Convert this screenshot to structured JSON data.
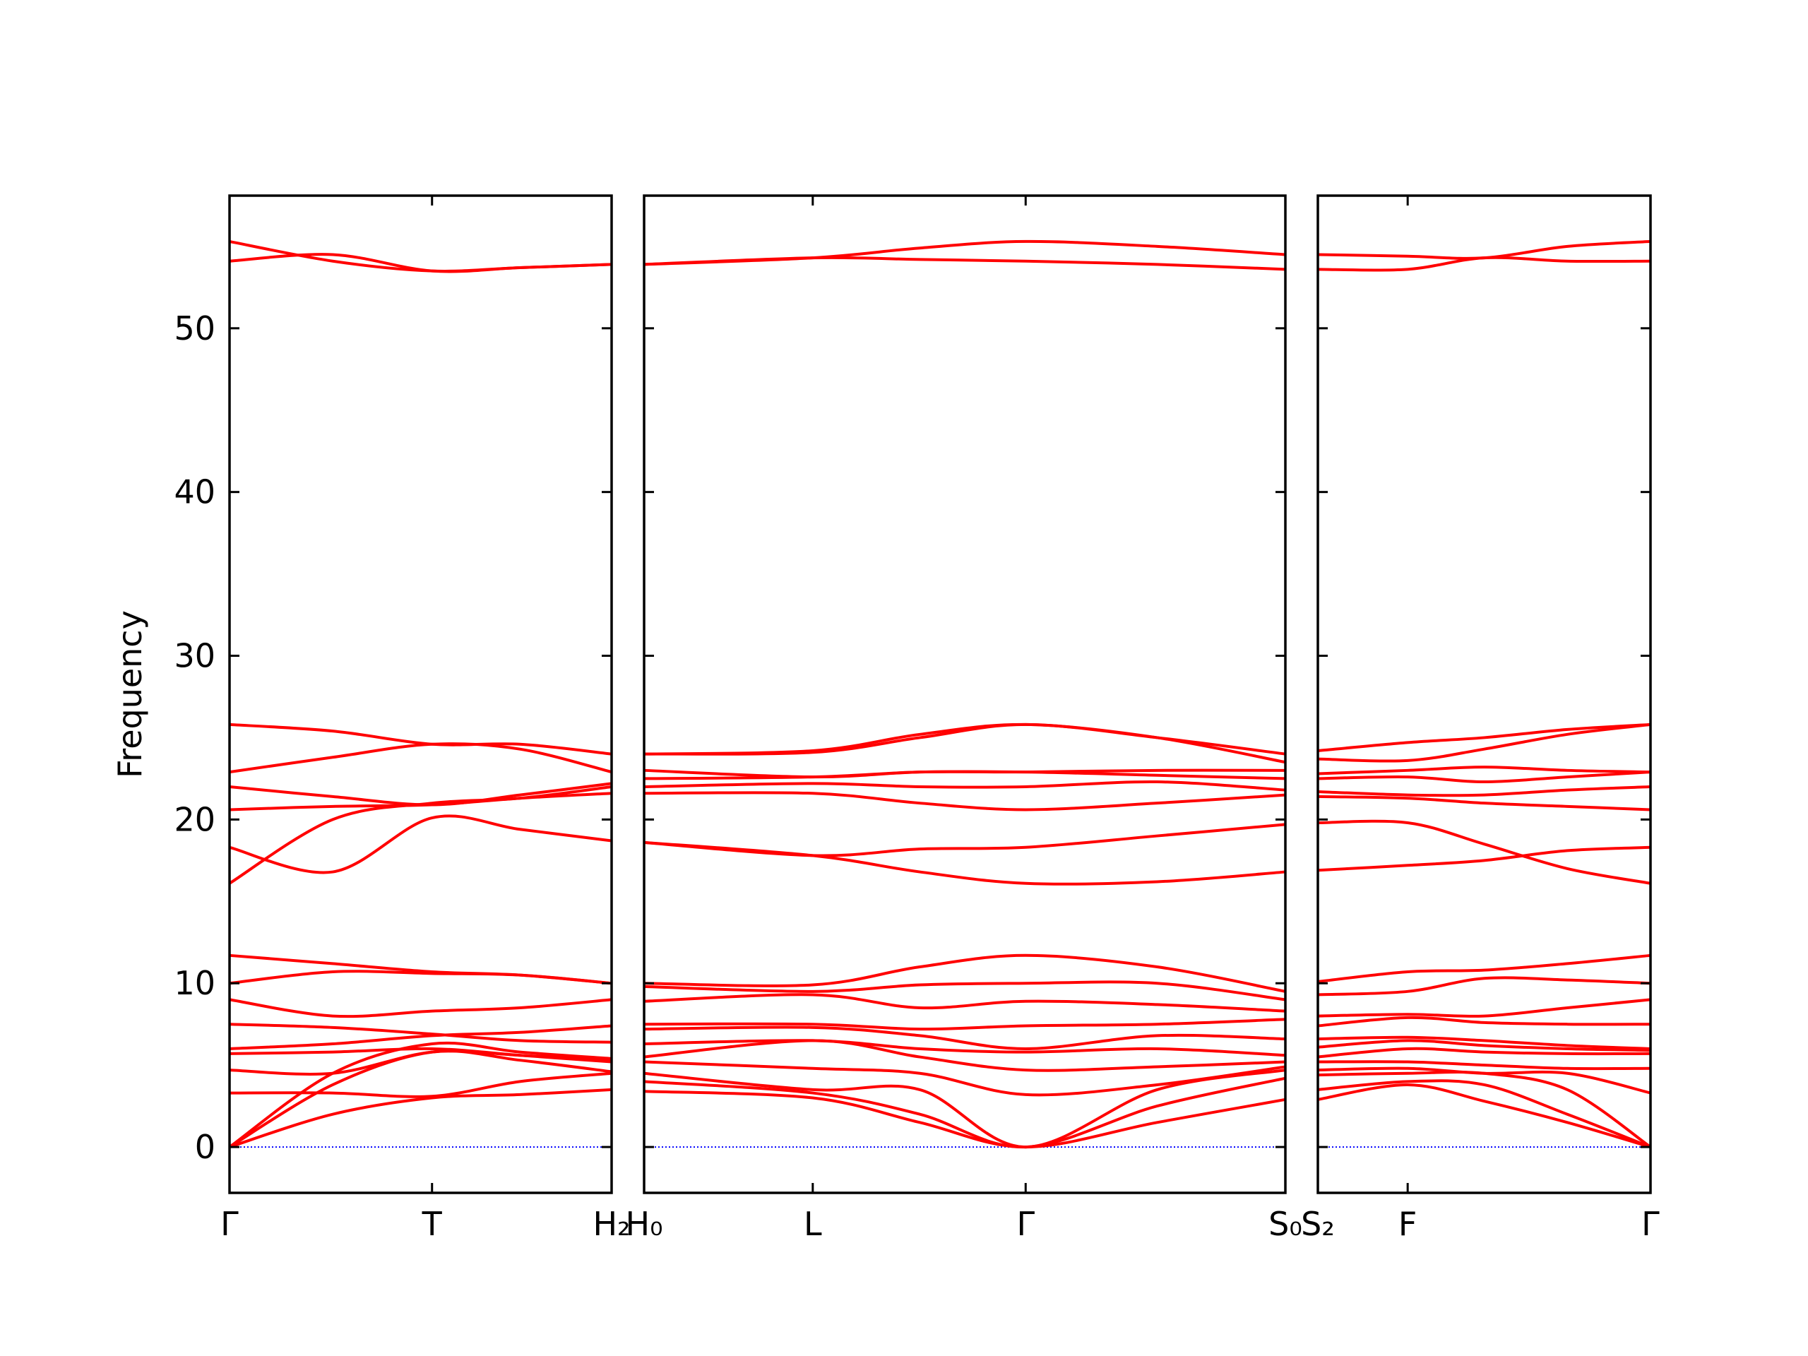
{
  "chart_data": [
    {
      "type": "line",
      "ylabel": "Frequency",
      "color": "#ff0000",
      "zero_line": true,
      "zero_line_color": "#0000ff",
      "xlim": [
        0,
        1
      ],
      "ylim": [
        -2.8,
        58.1
      ],
      "yticks": [
        0,
        10,
        20,
        30,
        40,
        50
      ],
      "xticks": [
        {
          "value": 0,
          "label": "Γ"
        },
        {
          "value": 0.53,
          "label": "T"
        },
        {
          "value": 1,
          "label": "H₂"
        }
      ],
      "x": [
        0,
        0.27,
        0.53,
        0.76,
        1
      ],
      "series": [
        {
          "values": [
            0,
            2.0,
            3.0,
            3.2,
            3.5
          ]
        },
        {
          "values": [
            0,
            3.8,
            5.8,
            5.3,
            4.6
          ]
        },
        {
          "values": [
            0,
            4.5,
            6.3,
            5.8,
            5.4
          ]
        },
        {
          "values": [
            3.3,
            3.3,
            3.1,
            4.0,
            4.5
          ]
        },
        {
          "values": [
            4.7,
            4.5,
            5.8,
            5.6,
            5.3
          ]
        },
        {
          "values": [
            5.7,
            5.8,
            6.0,
            5.6,
            5.2
          ]
        },
        {
          "values": [
            6.0,
            6.3,
            6.8,
            7.0,
            7.4
          ]
        },
        {
          "values": [
            7.5,
            7.3,
            6.9,
            6.5,
            6.4
          ]
        },
        {
          "values": [
            9.0,
            8.0,
            8.3,
            8.5,
            9.0
          ]
        },
        {
          "values": [
            10.0,
            10.7,
            10.6,
            10.5,
            10.0
          ]
        },
        {
          "values": [
            11.7,
            11.2,
            10.7,
            10.5,
            10.0
          ]
        },
        {
          "values": [
            16.1,
            20.0,
            21.0,
            21.3,
            22.0
          ]
        },
        {
          "values": [
            18.3,
            16.8,
            20.1,
            19.4,
            18.7
          ]
        },
        {
          "values": [
            20.6,
            20.8,
            20.9,
            21.3,
            21.6
          ]
        },
        {
          "values": [
            22.0,
            21.4,
            20.9,
            21.5,
            22.2
          ]
        },
        {
          "values": [
            22.9,
            23.8,
            24.6,
            24.3,
            22.9
          ]
        },
        {
          "values": [
            25.8,
            25.4,
            24.6,
            24.6,
            24.0
          ]
        },
        {
          "values": [
            54.1,
            54.5,
            53.5,
            53.7,
            53.9
          ]
        },
        {
          "values": [
            55.3,
            54.1,
            53.5,
            53.7,
            53.9
          ]
        }
      ]
    },
    {
      "type": "line",
      "color": "#ff0000",
      "zero_line": true,
      "zero_line_color": "#0000ff",
      "xlim": [
        0,
        1
      ],
      "ylim": [
        -2.8,
        58.1
      ],
      "yticks": [
        0,
        10,
        20,
        30,
        40,
        50
      ],
      "xticks": [
        {
          "value": 0,
          "label": "H₀"
        },
        {
          "value": 0.263,
          "label": "L"
        },
        {
          "value": 0.595,
          "label": "Γ"
        },
        {
          "value": 1,
          "label": "S₀"
        }
      ],
      "x": [
        0,
        0.263,
        0.43,
        0.595,
        0.8,
        1
      ],
      "series": [
        {
          "values": [
            3.4,
            3.0,
            1.5,
            0,
            1.5,
            2.9
          ]
        },
        {
          "values": [
            4.0,
            3.3,
            2.0,
            0,
            2.5,
            4.2
          ]
        },
        {
          "values": [
            4.5,
            3.5,
            3.5,
            0,
            3.5,
            4.7
          ]
        },
        {
          "values": [
            5.2,
            4.8,
            4.5,
            3.2,
            3.8,
            4.9
          ]
        },
        {
          "values": [
            5.5,
            6.5,
            5.5,
            4.7,
            4.9,
            5.2
          ]
        },
        {
          "values": [
            6.3,
            6.5,
            6.0,
            5.8,
            6.0,
            5.6
          ]
        },
        {
          "values": [
            7.2,
            7.3,
            6.8,
            6.0,
            6.8,
            6.6
          ]
        },
        {
          "values": [
            7.5,
            7.5,
            7.2,
            7.4,
            7.5,
            7.8
          ]
        },
        {
          "values": [
            8.9,
            9.3,
            8.5,
            8.9,
            8.7,
            8.3
          ]
        },
        {
          "values": [
            9.8,
            9.5,
            9.9,
            10.0,
            10.0,
            9.0
          ]
        },
        {
          "values": [
            10.0,
            9.9,
            11.0,
            11.7,
            11.0,
            9.5
          ]
        },
        {
          "values": [
            18.6,
            17.8,
            18.2,
            18.3,
            19.0,
            19.7
          ]
        },
        {
          "values": [
            18.6,
            17.8,
            16.8,
            16.1,
            16.2,
            16.8
          ]
        },
        {
          "values": [
            21.6,
            21.6,
            21.0,
            20.6,
            21.0,
            21.5
          ]
        },
        {
          "values": [
            22.0,
            22.2,
            22.0,
            22.0,
            22.3,
            21.8
          ]
        },
        {
          "values": [
            22.5,
            22.6,
            22.9,
            22.9,
            22.7,
            22.5
          ]
        },
        {
          "values": [
            23.0,
            22.6,
            22.9,
            22.9,
            23.0,
            23.0
          ]
        },
        {
          "values": [
            24.0,
            24.2,
            25.2,
            25.8,
            25.0,
            23.5
          ]
        },
        {
          "values": [
            24.0,
            24.1,
            25.0,
            25.8,
            25.0,
            24.0
          ]
        },
        {
          "values": [
            53.9,
            54.3,
            54.2,
            54.1,
            53.9,
            53.6
          ]
        },
        {
          "values": [
            53.9,
            54.3,
            54.9,
            55.3,
            55.0,
            54.5
          ]
        }
      ]
    },
    {
      "type": "line",
      "color": "#ff0000",
      "zero_line": true,
      "zero_line_color": "#0000ff",
      "xlim": [
        0,
        1
      ],
      "ylim": [
        -2.8,
        58.1
      ],
      "yticks": [
        0,
        10,
        20,
        30,
        40,
        50
      ],
      "xticks": [
        {
          "value": 0,
          "label": "S₂"
        },
        {
          "value": 0.27,
          "label": "F"
        },
        {
          "value": 1,
          "label": "Γ"
        }
      ],
      "x": [
        0,
        0.27,
        0.5,
        0.75,
        1
      ],
      "series": [
        {
          "values": [
            2.9,
            3.8,
            2.8,
            1.5,
            0
          ]
        },
        {
          "values": [
            3.5,
            4.0,
            3.8,
            2.0,
            0
          ]
        },
        {
          "values": [
            4.4,
            4.5,
            4.5,
            3.5,
            0
          ]
        },
        {
          "values": [
            4.7,
            4.8,
            4.5,
            4.5,
            3.3
          ]
        },
        {
          "values": [
            5.2,
            5.2,
            5.0,
            4.8,
            4.8
          ]
        },
        {
          "values": [
            5.5,
            6.0,
            5.8,
            5.7,
            5.7
          ]
        },
        {
          "values": [
            6.1,
            6.5,
            6.2,
            6.0,
            5.9
          ]
        },
        {
          "values": [
            6.6,
            6.7,
            6.5,
            6.2,
            6.0
          ]
        },
        {
          "values": [
            7.4,
            7.9,
            7.6,
            7.5,
            7.5
          ]
        },
        {
          "values": [
            8.0,
            8.1,
            8.0,
            8.5,
            9.0
          ]
        },
        {
          "values": [
            9.3,
            9.5,
            10.3,
            10.2,
            10.0
          ]
        },
        {
          "values": [
            10.1,
            10.7,
            10.8,
            11.2,
            11.7
          ]
        },
        {
          "values": [
            16.9,
            17.2,
            17.5,
            18.1,
            18.3
          ]
        },
        {
          "values": [
            19.8,
            19.8,
            18.5,
            17.0,
            16.1
          ]
        },
        {
          "values": [
            21.4,
            21.3,
            21.0,
            20.8,
            20.6
          ]
        },
        {
          "values": [
            21.7,
            21.5,
            21.5,
            21.8,
            22.0
          ]
        },
        {
          "values": [
            22.5,
            22.6,
            22.3,
            22.6,
            22.9
          ]
        },
        {
          "values": [
            22.8,
            23.0,
            23.2,
            23.0,
            22.9
          ]
        },
        {
          "values": [
            23.7,
            23.6,
            24.3,
            25.2,
            25.8
          ]
        },
        {
          "values": [
            24.2,
            24.7,
            25.0,
            25.5,
            25.8
          ]
        },
        {
          "values": [
            53.6,
            53.6,
            54.3,
            54.1,
            54.1
          ]
        },
        {
          "values": [
            54.5,
            54.4,
            54.3,
            55.0,
            55.3
          ]
        }
      ]
    }
  ]
}
